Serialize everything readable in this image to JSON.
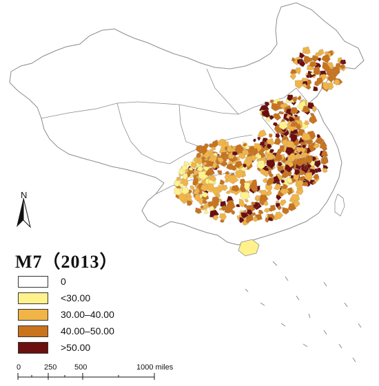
{
  "map": {
    "title": "M7（2013）",
    "north_label": "N",
    "legend": [
      {
        "label": "0",
        "color": "#ffffff"
      },
      {
        "label": "<30.00",
        "color": "#fff28c"
      },
      {
        "label": "30.00–40.00",
        "color": "#f1b446"
      },
      {
        "label": "40.00–50.00",
        "color": "#c9731c"
      },
      {
        "label": ">50.00",
        "color": "#6b0f0f"
      }
    ],
    "scale": {
      "labels": [
        "0",
        "250",
        "500",
        "1000 miles"
      ]
    },
    "boundary_color": "#8a8a8a"
  }
}
